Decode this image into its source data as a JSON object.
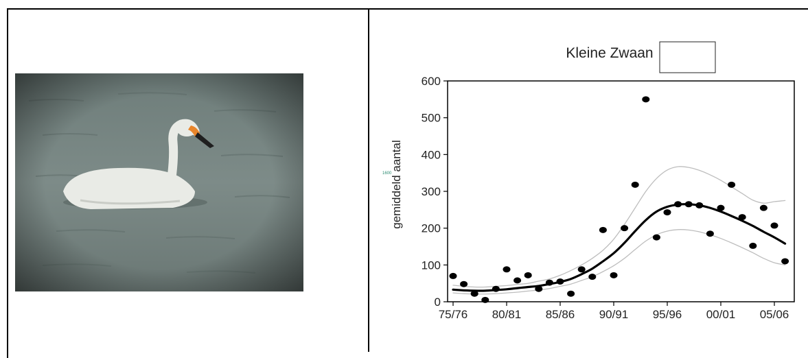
{
  "photo": {
    "subject": "swan-on-water"
  },
  "chart_data": {
    "type": "scatter",
    "title": "Kleine Zwaan",
    "xlabel": "",
    "ylabel": "gemiddeld aantal",
    "stray_label": "1600",
    "categories": [
      "75/76",
      "76/77",
      "77/78",
      "78/79",
      "79/80",
      "80/81",
      "81/82",
      "82/83",
      "83/84",
      "84/85",
      "85/86",
      "86/87",
      "87/88",
      "88/89",
      "89/90",
      "90/91",
      "91/92",
      "92/93",
      "93/94",
      "94/95",
      "95/96",
      "96/97",
      "97/98",
      "98/99",
      "99/00",
      "00/01",
      "01/02",
      "02/03",
      "03/04",
      "04/05",
      "05/06",
      "06/07"
    ],
    "xtick_labels": [
      "75/76",
      "80/81",
      "85/86",
      "90/91",
      "95/96",
      "00/01",
      "05/06"
    ],
    "ylim": [
      0,
      600
    ],
    "yticks": [
      0,
      100,
      200,
      300,
      400,
      500,
      600
    ],
    "grid": false,
    "series": [
      {
        "kind": "points",
        "values": [
          70,
          48,
          22,
          5,
          35,
          88,
          58,
          72,
          35,
          52,
          55,
          22,
          88,
          68,
          195,
          72,
          200,
          318,
          550,
          175,
          243,
          265,
          265,
          262,
          185,
          255,
          318,
          230,
          152,
          255,
          207,
          110
        ]
      },
      {
        "kind": "trend",
        "values": [
          33,
          31,
          30,
          30,
          32,
          34,
          37,
          40,
          43,
          48,
          54,
          62,
          75,
          90,
          110,
          132,
          160,
          192,
          222,
          245,
          258,
          264,
          265,
          262,
          255,
          245,
          233,
          220,
          206,
          190,
          175,
          158
        ]
      },
      {
        "kind": "upper",
        "values": [
          45,
          42,
          40,
          40,
          42,
          44,
          47,
          50,
          56,
          62,
          72,
          85,
          100,
          118,
          140,
          170,
          210,
          255,
          300,
          335,
          358,
          367,
          365,
          357,
          345,
          330,
          312,
          294,
          276,
          268,
          272,
          275
        ]
      },
      {
        "kind": "lower",
        "values": [
          24,
          22,
          21,
          21,
          22,
          24,
          26,
          29,
          32,
          36,
          42,
          48,
          58,
          68,
          82,
          98,
          118,
          142,
          165,
          182,
          192,
          196,
          195,
          190,
          182,
          172,
          160,
          147,
          133,
          118,
          106,
          100
        ]
      }
    ]
  },
  "legend_box": {
    "text": ""
  }
}
